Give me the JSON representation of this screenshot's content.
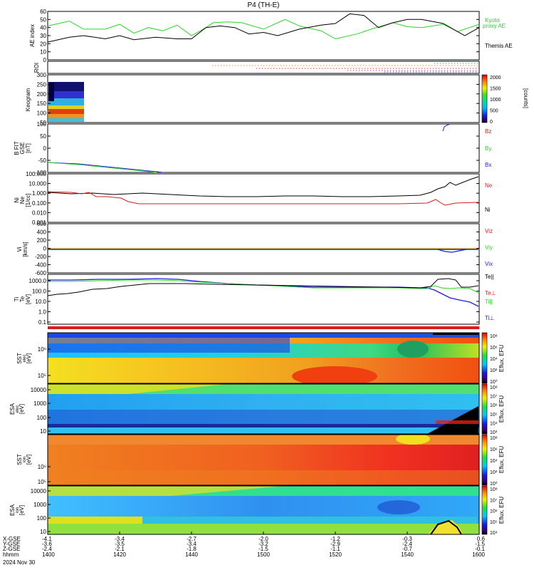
{
  "title": "P4  (TH-E)",
  "colors": {
    "red": "#d81c1c",
    "green": "#2ad52a",
    "blue": "#2020e0",
    "black": "#000000"
  },
  "chart_data": [
    {
      "type": "line",
      "panel": "ae",
      "ylabel": "AE index",
      "ylim": [
        0,
        60
      ],
      "yticks": [
        "0",
        "10",
        "20",
        "30",
        "40",
        "50",
        "60"
      ],
      "series": [
        {
          "name": "Kyoto",
          "name2": "proxy AE",
          "color": "green",
          "x": [
            0,
            3,
            5,
            8,
            10,
            12,
            14,
            16,
            18,
            20,
            22,
            23,
            25,
            27,
            30,
            33,
            35,
            38,
            40,
            43,
            45,
            48,
            50,
            52,
            55,
            57,
            60
          ],
          "y": [
            42,
            48,
            38,
            38,
            44,
            33,
            40,
            36,
            43,
            30,
            40,
            46,
            47,
            46,
            38,
            50,
            42,
            36,
            26,
            32,
            38,
            46,
            41,
            40,
            44,
            35,
            44
          ]
        },
        {
          "name": "Themis AE",
          "color": "black",
          "x": [
            0,
            3,
            5,
            8,
            10,
            12,
            15,
            18,
            20,
            22,
            24,
            26,
            28,
            30,
            32,
            35,
            38,
            40,
            42,
            44,
            46,
            48,
            50,
            52,
            55,
            58,
            60
          ],
          "y": [
            22,
            28,
            30,
            26,
            30,
            25,
            28,
            26,
            26,
            40,
            42,
            40,
            32,
            34,
            30,
            38,
            43,
            45,
            57,
            55,
            40,
            46,
            50,
            50,
            45,
            30,
            40
          ]
        }
      ]
    },
    {
      "type": "heatmap",
      "panel": "roi",
      "ylabel": "ROI"
    },
    {
      "type": "heatmap",
      "panel": "keogram",
      "ylabel": "Keogram",
      "ylim": [
        0,
        300
      ],
      "yticks": [
        "50",
        "100",
        "150",
        "200",
        "250",
        "300"
      ],
      "colorbar": {
        "label": "[counts]",
        "ticks": [
          "0",
          "500",
          "1000",
          "1500",
          "2000"
        ]
      }
    },
    {
      "type": "line",
      "panel": "bfield",
      "ylabel": "B FIT",
      "ylabel2": "GSE",
      "ylabel3": "[nT]",
      "ylim": [
        -100,
        100
      ],
      "yticks": [
        "-100",
        "-50",
        "0",
        "50",
        "100"
      ],
      "series": [
        {
          "name": "Bz",
          "color": "red"
        },
        {
          "name": "By",
          "color": "green"
        },
        {
          "name": "Bx",
          "color": "blue"
        }
      ]
    },
    {
      "type": "line",
      "panel": "density",
      "ylabel": "Ni",
      "ylabel2": "Ne",
      "ylabel3": "[1/cc]",
      "scale": "log",
      "yticks": [
        "0.001",
        "0.010",
        "0.100",
        "1.000",
        "10.000",
        "100.000"
      ],
      "series": [
        {
          "name": "Ne",
          "color": "red"
        },
        {
          "name": "Ni",
          "color": "black"
        }
      ]
    },
    {
      "type": "line",
      "panel": "velocity",
      "ylabel": "Vi",
      "ylabel2": "[km/s]",
      "ylim": [
        -600,
        600
      ],
      "yticks": [
        "-600",
        "-400",
        "-200",
        "0",
        "200",
        "400",
        "600"
      ],
      "series": [
        {
          "name": "Viz",
          "color": "red"
        },
        {
          "name": "Viy",
          "color": "green"
        },
        {
          "name": "Vix",
          "color": "blue"
        }
      ]
    },
    {
      "type": "line",
      "panel": "temperature",
      "ylabel": "Ti",
      "ylabel2": "Te",
      "ylabel3": "[eV]",
      "scale": "log",
      "yticks": [
        "0.1",
        "1.0",
        "10.0",
        "100.0",
        "1000.0"
      ],
      "series": [
        {
          "name": "Te||",
          "color": "black"
        },
        {
          "name": "Te⊥",
          "color": "red"
        },
        {
          "name": "Ti||",
          "color": "green"
        },
        {
          "name": "Ti⊥",
          "color": "blue"
        }
      ]
    },
    {
      "type": "heatmap",
      "panel": "sst-e",
      "ylabel": "SST",
      "ylabel2": "elec",
      "ylabel3": "[eV]",
      "scale": "log",
      "yticks": [
        "10⁵",
        "10⁶"
      ],
      "colorbar": {
        "label": "Eflux, EFU",
        "ticks": [
          "10⁰",
          "10²",
          "10⁴",
          "10⁶",
          "10⁸"
        ]
      }
    },
    {
      "type": "heatmap",
      "panel": "esa-e",
      "ylabel": "ESA",
      "ylabel2": "elec",
      "ylabel3": "[eV]",
      "scale": "log",
      "yticks": [
        "10",
        "100",
        "1000",
        "10000"
      ],
      "colorbar": {
        "label": "Eflux, EFU",
        "ticks": [
          "10³",
          "10⁴",
          "10⁵",
          "10⁶",
          "10⁷",
          "10⁸"
        ]
      }
    },
    {
      "type": "heatmap",
      "panel": "sst-i",
      "ylabel": "SST",
      "ylabel2": "ion",
      "ylabel3": "[eV]",
      "scale": "log",
      "yticks": [
        "10⁵",
        "10⁶"
      ],
      "colorbar": {
        "label": "Eflux, EFU",
        "ticks": [
          "10⁰",
          "10²",
          "10⁴",
          "10⁶",
          "10⁸"
        ]
      }
    },
    {
      "type": "heatmap",
      "panel": "esa-i",
      "ylabel": "ESA",
      "ylabel2": "ion",
      "ylabel3": "[eV]",
      "scale": "log",
      "yticks": [
        "10",
        "100",
        "1000",
        "10000"
      ],
      "colorbar": {
        "label": "Eflux, EFU",
        "ticks": [
          "10⁴",
          "10⁵",
          "10⁶",
          "10⁷",
          "10⁸"
        ]
      }
    }
  ],
  "xaxis": {
    "row_labels": [
      "X-GSE",
      "Y-GSE",
      "Z-GSE",
      "hhmm",
      "2024 Nov 30"
    ],
    "ticks": [
      {
        "x": "-4.1",
        "y": "-3.6",
        "z": "-2.4",
        "t": "1400"
      },
      {
        "x": "-3.4",
        "y": "-3.5",
        "z": "-2.1",
        "t": "1420"
      },
      {
        "x": "-2.7",
        "y": "-3.4",
        "z": "-1.8",
        "t": "1440"
      },
      {
        "x": "-2.0",
        "y": "-3.2",
        "z": "-1.5",
        "t": "1500"
      },
      {
        "x": "-1.2",
        "y": "-2.9",
        "z": "-1.1",
        "t": "1520"
      },
      {
        "x": "-0.3",
        "y": "-2.4",
        "z": "-0.7",
        "t": "1540"
      },
      {
        "x": "0.6",
        "y": "-1.5",
        "z": "-0.1",
        "t": "1600"
      }
    ]
  }
}
